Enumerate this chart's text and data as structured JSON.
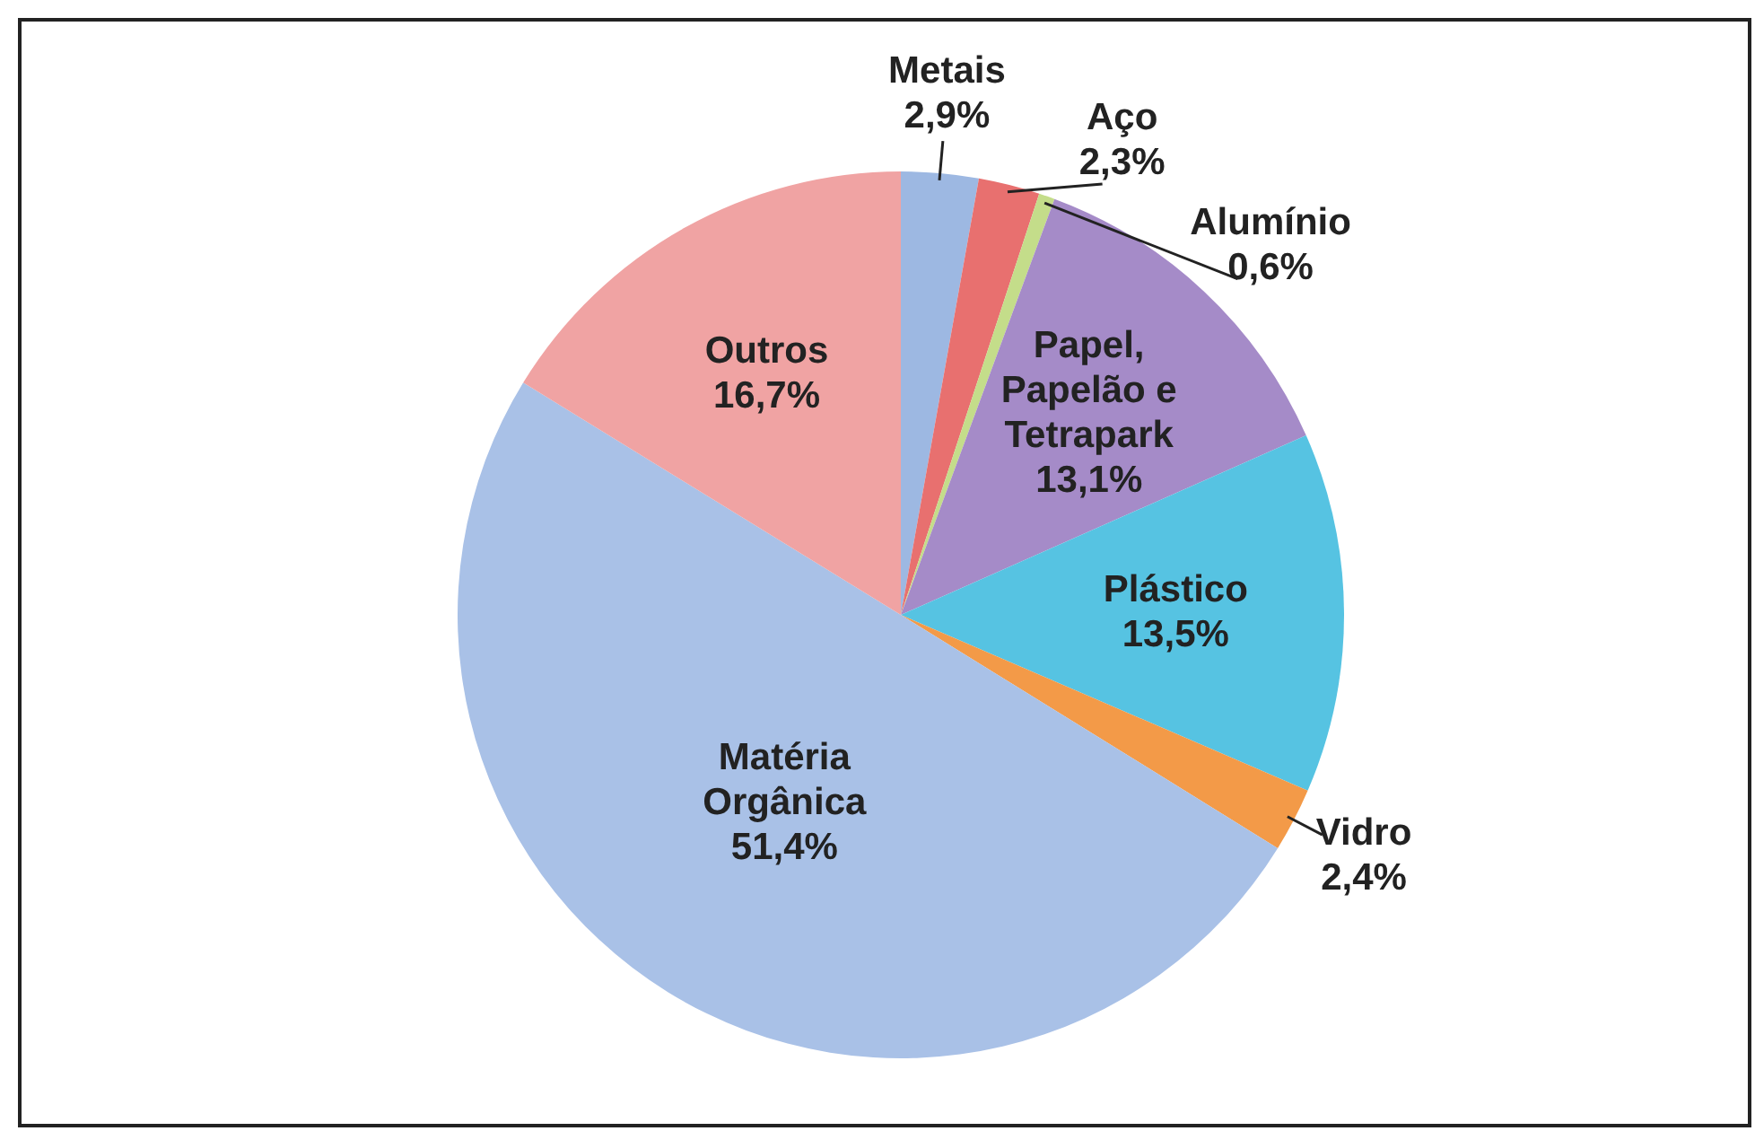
{
  "chart_data": {
    "type": "pie",
    "categories": [
      "Metais",
      "Aço",
      "Alumínio",
      "Papel, Papelão e Tetrapark",
      "Plástico",
      "Vidro",
      "Matéria Orgânica",
      "Outros"
    ],
    "values": [
      2.9,
      2.3,
      0.6,
      13.1,
      13.5,
      2.4,
      51.4,
      16.7
    ],
    "value_labels": [
      "2,9%",
      "2,3%",
      "0,6%",
      "13,1%",
      "13,5%",
      "2,4%",
      "51,4%",
      "16,7%"
    ],
    "colors": [
      "#9db8e2",
      "#e8706f",
      "#c4dd8a",
      "#a58bc8",
      "#56c3e2",
      "#f39a48",
      "#a9c1e7",
      "#f0a3a3"
    ],
    "legend": false
  }
}
